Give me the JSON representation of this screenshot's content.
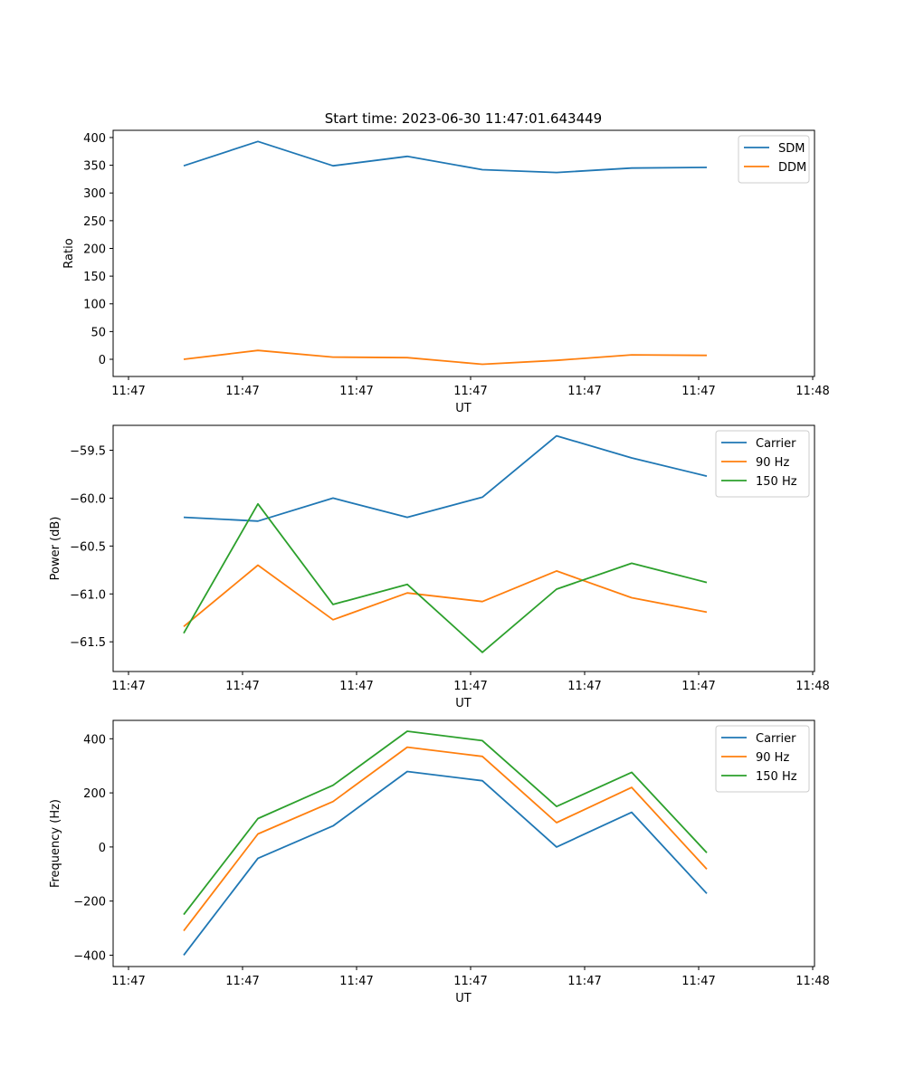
{
  "figure_title": "Start time: 2023-06-30 11:47:01.643449",
  "colors": {
    "blue": "#1f77b4",
    "orange": "#ff7f0e",
    "green": "#2ca02c"
  },
  "chart_data": [
    {
      "type": "line",
      "xlabel": "UT",
      "ylabel": "Ratio",
      "x_tick_labels": [
        "11:47",
        "11:47",
        "11:47",
        "11:47",
        "11:47",
        "11:47",
        "11:48"
      ],
      "yticks": [
        0,
        50,
        100,
        150,
        200,
        250,
        300,
        350,
        400
      ],
      "ytick_labels": [
        "0",
        "50",
        "100",
        "150",
        "200",
        "250",
        "300",
        "350",
        "400"
      ],
      "ylim": [
        -31,
        413
      ],
      "legend_position": "upper-right",
      "series": [
        {
          "name": "SDM",
          "color": "#1f77b4",
          "values": [
            349,
            393,
            349,
            366,
            342,
            337,
            345,
            346
          ]
        },
        {
          "name": "DDM",
          "color": "#ff7f0e",
          "values": [
            0,
            16,
            4,
            3,
            -9,
            -2,
            8,
            7
          ]
        }
      ]
    },
    {
      "type": "line",
      "xlabel": "UT",
      "ylabel": "Power (dB)",
      "x_tick_labels": [
        "11:47",
        "11:47",
        "11:47",
        "11:47",
        "11:47",
        "11:47",
        "11:48"
      ],
      "yticks": [
        -61.5,
        -61.0,
        -60.5,
        -60.0,
        -59.5
      ],
      "ytick_labels": [
        "−61.5",
        "−61.0",
        "−60.5",
        "−60.0",
        "−59.5"
      ],
      "ylim": [
        -61.81,
        -59.24
      ],
      "legend_position": "upper-right",
      "series": [
        {
          "name": "Carrier",
          "color": "#1f77b4",
          "values": [
            -60.2,
            -60.24,
            -60.0,
            -60.2,
            -59.99,
            -59.35,
            -59.58,
            -59.77
          ]
        },
        {
          "name": "90 Hz",
          "color": "#ff7f0e",
          "values": [
            -61.34,
            -60.7,
            -61.27,
            -60.99,
            -61.08,
            -60.76,
            -61.04,
            -61.19
          ]
        },
        {
          "name": "150 Hz",
          "color": "#2ca02c",
          "values": [
            -61.41,
            -60.06,
            -61.11,
            -60.9,
            -61.61,
            -60.95,
            -60.68,
            -60.88
          ]
        }
      ]
    },
    {
      "type": "line",
      "xlabel": "UT",
      "ylabel": "Frequency (Hz)",
      "x_tick_labels": [
        "11:47",
        "11:47",
        "11:47",
        "11:47",
        "11:47",
        "11:47",
        "11:48"
      ],
      "yticks": [
        -400,
        -200,
        0,
        200,
        400
      ],
      "ytick_labels": [
        "−400",
        "−200",
        "0",
        "200",
        "400"
      ],
      "ylim": [
        -442,
        468
      ],
      "legend_position": "upper-right",
      "series": [
        {
          "name": "Carrier",
          "color": "#1f77b4",
          "values": [
            -400,
            -42,
            78,
            279,
            245,
            0,
            128,
            -172
          ]
        },
        {
          "name": "90 Hz",
          "color": "#ff7f0e",
          "values": [
            -310,
            48,
            168,
            369,
            335,
            90,
            220,
            -82
          ]
        },
        {
          "name": "150 Hz",
          "color": "#2ca02c",
          "values": [
            -250,
            105,
            228,
            428,
            393,
            150,
            276,
            -21
          ]
        }
      ]
    }
  ]
}
